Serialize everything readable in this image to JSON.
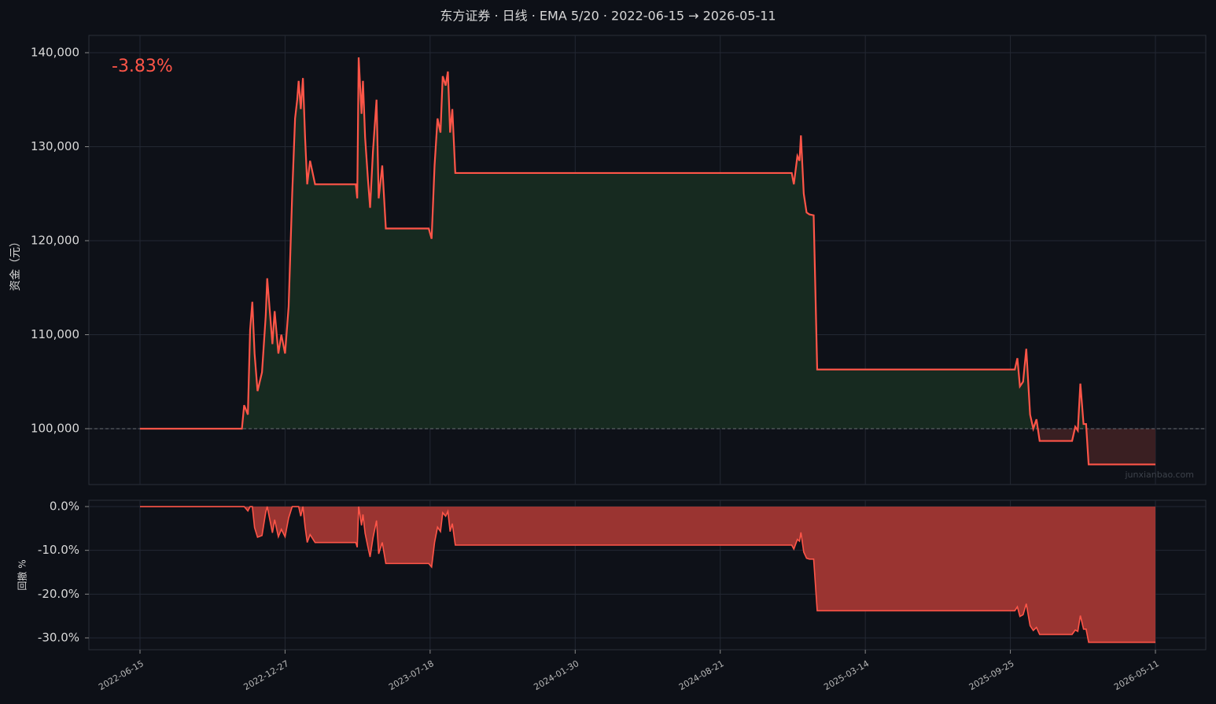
{
  "chart_data": [
    {
      "type": "line",
      "title": "东方证券 · 日线 · EMA 5/20 · 2022-06-15 → 2026-05-11",
      "annotation": "-3.83%",
      "watermark": "junxianbao.com",
      "ylabel": "资金（元）",
      "x": [
        "2022-06-15",
        "2022-10-30",
        "2022-11-02",
        "2022-11-07",
        "2022-11-10",
        "2022-11-13",
        "2022-11-16",
        "2022-11-20",
        "2022-11-26",
        "2022-12-01",
        "2022-12-03",
        "2022-12-07",
        "2022-12-10",
        "2022-12-13",
        "2022-12-18",
        "2022-12-22",
        "2022-12-27",
        "2023-01-01",
        "2023-01-06",
        "2023-01-10",
        "2023-01-13",
        "2023-01-15",
        "2023-01-18",
        "2023-01-21",
        "2023-01-24",
        "2023-01-27",
        "2023-01-31",
        "2023-02-07",
        "2023-04-05",
        "2023-04-07",
        "2023-04-09",
        "2023-04-13",
        "2023-04-15",
        "2023-04-18",
        "2023-04-22",
        "2023-04-25",
        "2023-04-29",
        "2023-05-04",
        "2023-05-07",
        "2023-05-12",
        "2023-05-17",
        "2023-07-16",
        "2023-07-20",
        "2023-07-24",
        "2023-07-28",
        "2023-08-01",
        "2023-08-04",
        "2023-08-08",
        "2023-08-11",
        "2023-08-14",
        "2023-08-17",
        "2023-08-21",
        "2024-11-30",
        "2024-12-03",
        "2024-12-08",
        "2024-12-11",
        "2024-12-13",
        "2024-12-17",
        "2024-12-21",
        "2024-12-25",
        "2024-12-31",
        "2025-01-05",
        "2025-10-02",
        "2025-10-06",
        "2025-10-10",
        "2025-10-15",
        "2025-10-20",
        "2025-10-26",
        "2025-10-31",
        "2025-11-05",
        "2025-11-10",
        "2025-12-31",
        "2026-01-05",
        "2026-01-09",
        "2026-01-13",
        "2026-01-18",
        "2026-01-22",
        "2026-01-26",
        "2026-05-11"
      ],
      "series": [
        {
          "color": "#ff5548",
          "values": [
            100000,
            100000,
            102500,
            101500,
            110500,
            113500,
            108000,
            104000,
            106000,
            112000,
            116000,
            112000,
            109000,
            112500,
            108000,
            110000,
            108000,
            113000,
            125000,
            133000,
            135000,
            137000,
            134000,
            137300,
            131000,
            126000,
            128500,
            126000,
            126000,
            124500,
            139500,
            133500,
            137000,
            131000,
            126500,
            123500,
            129500,
            135000,
            124500,
            128000,
            121300,
            121300,
            120200,
            128000,
            133000,
            131500,
            137500,
            136500,
            138000,
            131500,
            134000,
            127200,
            127200,
            126000,
            129000,
            128500,
            131200,
            125000,
            123000,
            122800,
            122700,
            106300,
            106300,
            107500,
            104500,
            105000,
            108500,
            101500,
            100000,
            101000,
            98700,
            98700,
            100200,
            99800,
            104800,
            100500,
            100500,
            96200,
            96200
          ]
        }
      ],
      "baseline": 100000,
      "fill_above": "#172a20",
      "fill_below": "#3a1f22",
      "ylim": [
        94060,
        141840
      ],
      "yticks": [
        {
          "value": 100000,
          "label": "100,000"
        },
        {
          "value": 110000,
          "label": "110,000"
        },
        {
          "value": 120000,
          "label": "120,000"
        },
        {
          "value": 130000,
          "label": "130,000"
        },
        {
          "value": 140000,
          "label": "140,000"
        }
      ],
      "grid": true
    },
    {
      "type": "area",
      "ylabel": "回撤 %",
      "x": [
        "2022-06-15",
        "2022-10-30",
        "2022-11-02",
        "2022-11-07",
        "2022-11-10",
        "2022-11-13",
        "2022-11-16",
        "2022-11-20",
        "2022-11-26",
        "2022-12-01",
        "2022-12-03",
        "2022-12-07",
        "2022-12-10",
        "2022-12-13",
        "2022-12-18",
        "2022-12-22",
        "2022-12-27",
        "2023-01-01",
        "2023-01-06",
        "2023-01-10",
        "2023-01-13",
        "2023-01-15",
        "2023-01-18",
        "2023-01-21",
        "2023-01-24",
        "2023-01-27",
        "2023-01-31",
        "2023-02-07",
        "2023-04-05",
        "2023-04-07",
        "2023-04-09",
        "2023-04-13",
        "2023-04-15",
        "2023-04-18",
        "2023-04-22",
        "2023-04-25",
        "2023-04-29",
        "2023-05-04",
        "2023-05-07",
        "2023-05-12",
        "2023-05-17",
        "2023-07-16",
        "2023-07-20",
        "2023-07-24",
        "2023-07-28",
        "2023-08-01",
        "2023-08-04",
        "2023-08-08",
        "2023-08-11",
        "2023-08-14",
        "2023-08-17",
        "2023-08-21",
        "2024-11-30",
        "2024-12-03",
        "2024-12-08",
        "2024-12-11",
        "2024-12-13",
        "2024-12-17",
        "2024-12-21",
        "2024-12-25",
        "2024-12-31",
        "2025-01-05",
        "2025-10-02",
        "2025-10-06",
        "2025-10-10",
        "2025-10-15",
        "2025-10-20",
        "2025-10-26",
        "2025-10-31",
        "2025-11-05",
        "2025-11-10",
        "2025-12-31",
        "2026-01-05",
        "2026-01-09",
        "2026-01-13",
        "2026-01-18",
        "2026-01-22",
        "2026-01-26",
        "2026-05-11"
      ],
      "series": [
        {
          "color": "#ff5548",
          "fill": "#9a3431",
          "values": [
            0,
            0,
            0,
            -1.0,
            0,
            0,
            -4.8,
            -7.0,
            -6.6,
            -1.3,
            0,
            -3.4,
            -6.0,
            -3.0,
            -6.9,
            -5.2,
            -6.9,
            -2.6,
            0,
            0,
            0,
            0,
            -2.2,
            0,
            -4.6,
            -8.2,
            -6.4,
            -8.2,
            -8.2,
            -9.3,
            0,
            -4.3,
            -1.8,
            -6.1,
            -9.3,
            -11.5,
            -7.2,
            -3.2,
            -10.8,
            -8.2,
            -13.0,
            -13.0,
            -13.8,
            -8.2,
            -4.7,
            -5.7,
            -1.4,
            -2.2,
            -1.1,
            -5.7,
            -3.9,
            -8.8,
            -8.8,
            -9.7,
            -7.5,
            -7.9,
            -5.9,
            -10.4,
            -11.8,
            -12.0,
            -12.0,
            -23.8,
            -23.8,
            -22.9,
            -25.1,
            -24.7,
            -22.2,
            -27.2,
            -28.3,
            -27.6,
            -29.2,
            -29.2,
            -28.2,
            -28.5,
            -24.9,
            -28.0,
            -28.0,
            -31.0,
            -31.0
          ]
        }
      ],
      "ylim": [
        -32.7,
        1.44
      ],
      "yticks": [
        {
          "value": 0,
          "label": "0.0%"
        },
        {
          "value": -10,
          "label": "-10.0%"
        },
        {
          "value": -20,
          "label": "-20.0%"
        },
        {
          "value": -30,
          "label": "-30.0%"
        }
      ],
      "xlim": [
        "2022-04-07",
        "2026-07-29"
      ],
      "xticks": [
        "2022-06-15",
        "2022-12-27",
        "2023-07-18",
        "2024-01-30",
        "2024-08-21",
        "2025-03-14",
        "2025-09-25",
        "2026-05-11"
      ],
      "grid": true
    }
  ]
}
